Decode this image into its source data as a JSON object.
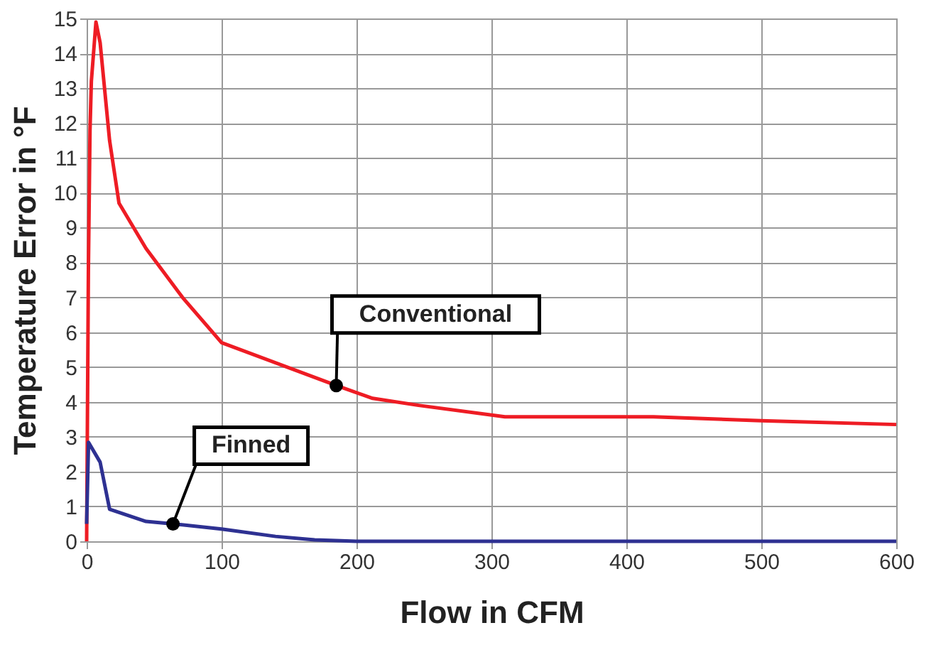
{
  "chart_data": {
    "type": "line",
    "xlabel": "Flow in CFM",
    "ylabel": "Temperature Error in °F",
    "xlim": [
      0,
      600
    ],
    "xticks": [
      0,
      100,
      200,
      300,
      400,
      500,
      600
    ],
    "ylim": [
      0,
      15
    ],
    "yticks": [
      0,
      1,
      2,
      3,
      4,
      5,
      6,
      7,
      8,
      9,
      10,
      11,
      12,
      13,
      14,
      15
    ],
    "grid": true,
    "legend": false,
    "marker": "none",
    "line_style": "solid",
    "series": [
      {
        "name": "Conventional",
        "color": "#ee1c24",
        "x": [
          0,
          1.3,
          2.5,
          3.5,
          6.9,
          10,
          17,
          24,
          44,
          71,
          100,
          185,
          212,
          246,
          310,
          420,
          500,
          600
        ],
        "values": [
          0,
          7.8,
          11.8,
          13.2,
          14.9,
          14.3,
          11.5,
          9.7,
          8.4,
          7.0,
          5.7,
          4.47,
          4.1,
          3.9,
          3.57,
          3.57,
          3.46,
          3.35
        ]
      },
      {
        "name": "Finned",
        "color": "#2e3192",
        "x": [
          0,
          1.4,
          10,
          17,
          44,
          64,
          100,
          140,
          169,
          200,
          600
        ],
        "values": [
          0.5,
          2.84,
          2.27,
          0.92,
          0.57,
          0.5,
          0.35,
          0.14,
          0.04,
          0,
          0
        ]
      }
    ]
  }
}
